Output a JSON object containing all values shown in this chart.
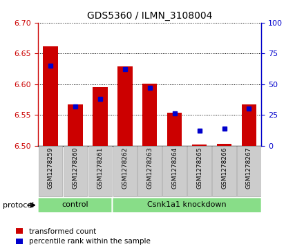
{
  "title": "GDS5360 / ILMN_3108004",
  "samples": [
    "GSM1278259",
    "GSM1278260",
    "GSM1278261",
    "GSM1278262",
    "GSM1278263",
    "GSM1278264",
    "GSM1278265",
    "GSM1278266",
    "GSM1278267"
  ],
  "red_values": [
    6.661,
    6.567,
    6.595,
    6.629,
    6.601,
    6.553,
    6.502,
    6.503,
    6.567
  ],
  "blue_values_pct": [
    65,
    32,
    38,
    62,
    47,
    26,
    12,
    14,
    30
  ],
  "ylim_left": [
    6.5,
    6.7
  ],
  "ylim_right": [
    0,
    100
  ],
  "yticks_left": [
    6.5,
    6.55,
    6.6,
    6.65,
    6.7
  ],
  "yticks_right": [
    0,
    25,
    50,
    75,
    100
  ],
  "left_tick_color": "#cc0000",
  "right_tick_color": "#0000cc",
  "bar_color": "#cc0000",
  "dot_color": "#0000cc",
  "bar_width": 0.6,
  "group_control_indices": [
    0,
    1,
    2
  ],
  "group_knockdown_indices": [
    3,
    4,
    5,
    6,
    7,
    8
  ],
  "group_control_label": "control",
  "group_knockdown_label": "Csnk1a1 knockdown",
  "group_color": "#88dd88",
  "protocol_label": "protocol",
  "legend_red": "transformed count",
  "legend_blue": "percentile rank within the sample",
  "sample_box_color": "#cccccc",
  "sample_box_edge": "#aaaaaa"
}
